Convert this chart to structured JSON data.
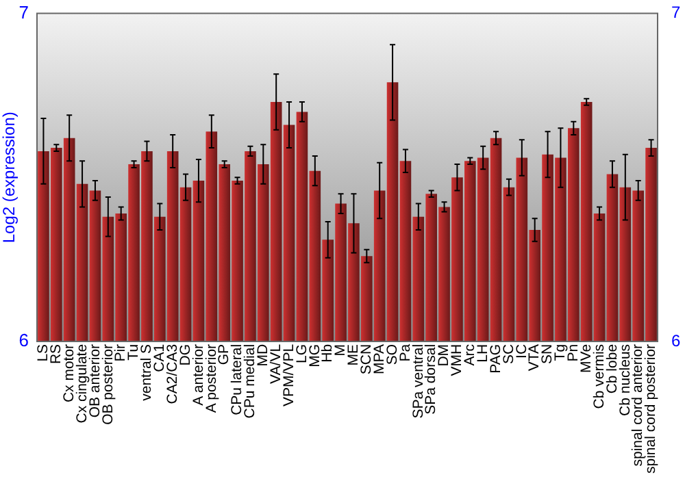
{
  "chart_data": {
    "type": "bar",
    "ylabel": "Log2 (expression)",
    "categories": [
      "LS",
      "RS",
      "Cx motor",
      "Cx cingulate",
      "OB anterior",
      "OB posterior",
      "Pir",
      "Tu",
      "ventral S",
      "CA1",
      "CA2/CA3",
      "DG",
      "A anterior",
      "A posterior",
      "GP",
      "CPu lateral",
      "CPu medial",
      "MD",
      "VA/VL",
      "VPM/VPL",
      "LG",
      "MG",
      "Hb",
      "M",
      "ME",
      "SCN",
      "MPA",
      "SO",
      "Pa",
      "SPa ventral",
      "SPa dorsal",
      "DM",
      "VMH",
      "Arc",
      "LH",
      "PAG",
      "SC",
      "IC",
      "VTA",
      "SN",
      "Tg",
      "Pn",
      "MVe",
      "Cb vermis",
      "Cb lobe",
      "Cb nucleus",
      "spinal cord anterior",
      "spinal cord posterior"
    ],
    "values": [
      6.58,
      6.59,
      6.62,
      6.48,
      6.46,
      6.38,
      6.39,
      6.54,
      6.58,
      6.38,
      6.58,
      6.47,
      6.49,
      6.64,
      6.54,
      6.49,
      6.58,
      6.54,
      6.73,
      6.66,
      6.7,
      6.52,
      6.31,
      6.42,
      6.36,
      6.26,
      6.46,
      6.79,
      6.55,
      6.38,
      6.45,
      6.41,
      6.5,
      6.55,
      6.56,
      6.62,
      6.47,
      6.56,
      6.34,
      6.57,
      6.56,
      6.65,
      6.73,
      6.39,
      6.51,
      6.47,
      6.46,
      6.59
    ],
    "errors": [
      0.1,
      0.01,
      0.07,
      0.07,
      0.03,
      0.06,
      0.02,
      0.01,
      0.03,
      0.04,
      0.05,
      0.04,
      0.065,
      0.05,
      0.01,
      0.01,
      0.015,
      0.06,
      0.085,
      0.07,
      0.03,
      0.045,
      0.055,
      0.03,
      0.09,
      0.02,
      0.085,
      0.115,
      0.035,
      0.04,
      0.01,
      0.015,
      0.04,
      0.01,
      0.035,
      0.02,
      0.025,
      0.055,
      0.035,
      0.07,
      0.09,
      0.02,
      0.01,
      0.02,
      0.04,
      0.1,
      0.03,
      0.025
    ],
    "color": "#b22a2a",
    "ylim": [
      6,
      7
    ],
    "yticks": [
      6,
      7
    ],
    "y2lim": [
      6,
      7
    ],
    "y2ticks": [
      6,
      7
    ],
    "grid": false,
    "legend": false
  }
}
